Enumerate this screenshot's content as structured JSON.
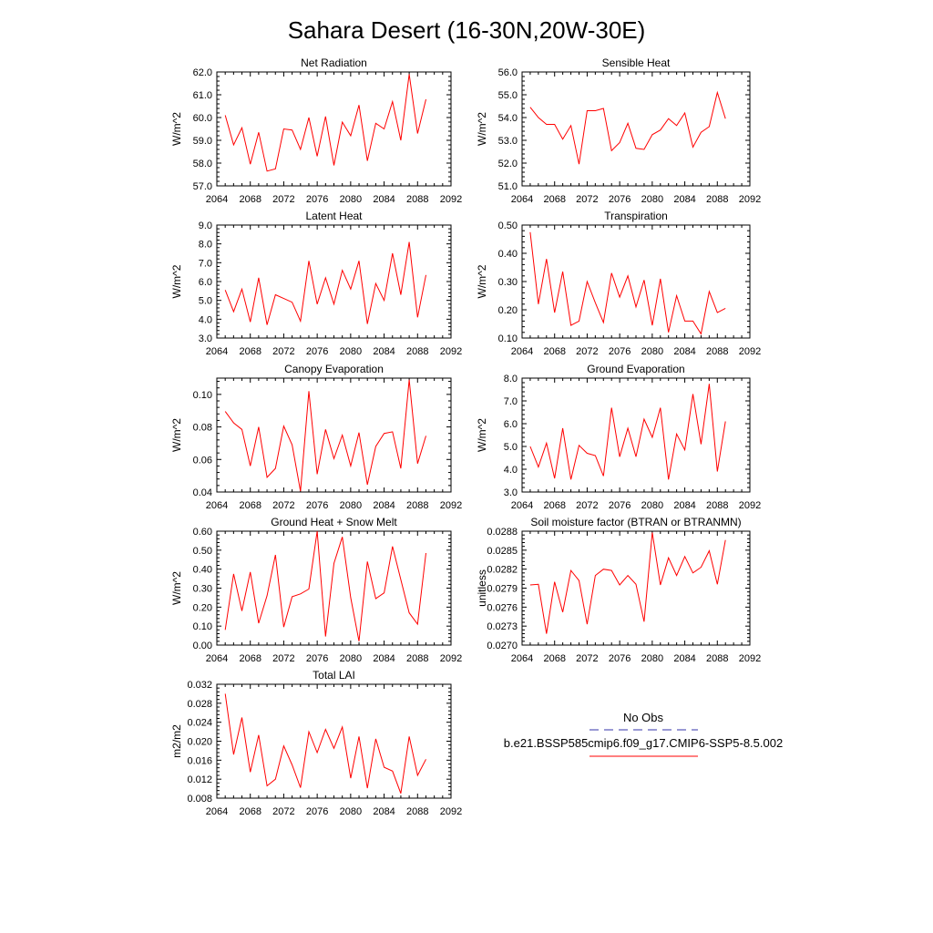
{
  "title": "Sahara Desert (16-30N,20W-30E)",
  "legend": {
    "obs_label": "No Obs",
    "obs_color": "#3333aa",
    "model_label": "b.e21.BSSP585cmip6.f09_g17.CMIP6-SSP5-8.5.002",
    "model_color": "#ff0000"
  },
  "chart_data": [
    {
      "type": "line",
      "title": "Net Radiation",
      "ylabel": "W/m^2",
      "xlabel": "",
      "xlim": [
        2064,
        2092
      ],
      "xticks": [
        "2064",
        "2068",
        "2072",
        "2076",
        "2080",
        "2084",
        "2088",
        "2092"
      ],
      "ylim": [
        57.0,
        62.0
      ],
      "yticks": [
        "57.0",
        "58.0",
        "59.0",
        "60.0",
        "61.0",
        "62.0"
      ],
      "series": [
        {
          "color": "#ff0000",
          "x": [
            2065,
            2066,
            2067,
            2068,
            2069,
            2070,
            2071,
            2072,
            2073,
            2074,
            2075,
            2076,
            2077,
            2078,
            2079,
            2080,
            2081,
            2082,
            2083,
            2084,
            2085,
            2086,
            2087,
            2088,
            2089
          ],
          "y": [
            60.1,
            58.8,
            59.55,
            57.95,
            59.35,
            57.65,
            57.75,
            59.5,
            59.45,
            58.6,
            60.0,
            58.3,
            60.05,
            57.9,
            59.8,
            59.2,
            60.55,
            58.1,
            59.75,
            59.5,
            60.7,
            59.0,
            61.9,
            59.3,
            60.8
          ]
        }
      ]
    },
    {
      "type": "line",
      "title": "Sensible Heat",
      "ylabel": "W/m^2",
      "xlabel": "",
      "xlim": [
        2064,
        2092
      ],
      "xticks": [
        "2064",
        "2068",
        "2072",
        "2076",
        "2080",
        "2084",
        "2088",
        "2092"
      ],
      "ylim": [
        51.0,
        56.0
      ],
      "yticks": [
        "51.0",
        "52.0",
        "53.0",
        "54.0",
        "55.0",
        "56.0"
      ],
      "series": [
        {
          "color": "#ff0000",
          "x": [
            2065,
            2066,
            2067,
            2068,
            2069,
            2070,
            2071,
            2072,
            2073,
            2074,
            2075,
            2076,
            2077,
            2078,
            2079,
            2080,
            2081,
            2082,
            2083,
            2084,
            2085,
            2086,
            2087,
            2088,
            2089
          ],
          "y": [
            54.45,
            54.0,
            53.7,
            53.7,
            53.05,
            53.65,
            51.95,
            54.3,
            54.3,
            54.4,
            52.55,
            52.9,
            53.75,
            52.65,
            52.6,
            53.25,
            53.45,
            53.95,
            53.65,
            54.2,
            52.7,
            53.35,
            53.6,
            55.1,
            53.95
          ]
        }
      ]
    },
    {
      "type": "line",
      "title": "Latent Heat",
      "ylabel": "W/m^2",
      "xlabel": "",
      "xlim": [
        2064,
        2092
      ],
      "xticks": [
        "2064",
        "2068",
        "2072",
        "2076",
        "2080",
        "2084",
        "2088",
        "2092"
      ],
      "ylim": [
        3.0,
        9.0
      ],
      "yticks": [
        "3.0",
        "4.0",
        "5.0",
        "6.0",
        "7.0",
        "8.0",
        "9.0"
      ],
      "series": [
        {
          "color": "#ff0000",
          "x": [
            2065,
            2066,
            2067,
            2068,
            2069,
            2070,
            2071,
            2072,
            2073,
            2074,
            2075,
            2076,
            2077,
            2078,
            2079,
            2080,
            2081,
            2082,
            2083,
            2084,
            2085,
            2086,
            2087,
            2088,
            2089
          ],
          "y": [
            5.55,
            4.4,
            5.6,
            3.85,
            6.2,
            3.7,
            5.3,
            5.1,
            4.9,
            3.9,
            7.1,
            4.8,
            6.2,
            4.8,
            6.6,
            5.6,
            7.1,
            3.75,
            5.9,
            5.0,
            7.5,
            5.3,
            8.1,
            4.1,
            6.35
          ]
        }
      ]
    },
    {
      "type": "line",
      "title": "Transpiration",
      "ylabel": "W/m^2",
      "xlabel": "",
      "xlim": [
        2064,
        2092
      ],
      "xticks": [
        "2064",
        "2068",
        "2072",
        "2076",
        "2080",
        "2084",
        "2088",
        "2092"
      ],
      "ylim": [
        0.1,
        0.5
      ],
      "yticks": [
        "0.10",
        "0.20",
        "0.30",
        "0.40",
        "0.50"
      ],
      "series": [
        {
          "color": "#ff0000",
          "x": [
            2065,
            2066,
            2067,
            2068,
            2069,
            2070,
            2071,
            2072,
            2073,
            2074,
            2075,
            2076,
            2077,
            2078,
            2079,
            2080,
            2081,
            2082,
            2083,
            2084,
            2085,
            2086,
            2087,
            2088,
            2089
          ],
          "y": [
            0.475,
            0.22,
            0.38,
            0.19,
            0.335,
            0.145,
            0.16,
            0.3,
            0.225,
            0.155,
            0.33,
            0.245,
            0.32,
            0.21,
            0.305,
            0.145,
            0.31,
            0.12,
            0.25,
            0.16,
            0.16,
            0.115,
            0.265,
            0.19,
            0.205
          ]
        }
      ]
    },
    {
      "type": "line",
      "title": "Canopy Evaporation",
      "ylabel": "W/m^2",
      "xlabel": "",
      "xlim": [
        2064,
        2092
      ],
      "xticks": [
        "2064",
        "2068",
        "2072",
        "2076",
        "2080",
        "2084",
        "2088",
        "2092"
      ],
      "ylim": [
        0.04,
        0.11
      ],
      "yticks": [
        "0.04",
        "0.06",
        "0.08",
        "0.10"
      ],
      "series": [
        {
          "color": "#ff0000",
          "x": [
            2065,
            2066,
            2067,
            2068,
            2069,
            2070,
            2071,
            2072,
            2073,
            2074,
            2075,
            2076,
            2077,
            2078,
            2079,
            2080,
            2081,
            2082,
            2083,
            2084,
            2085,
            2086,
            2087,
            2088,
            2089
          ],
          "y": [
            0.0895,
            0.0825,
            0.0785,
            0.056,
            0.08,
            0.049,
            0.0545,
            0.0805,
            0.069,
            0.0405,
            0.102,
            0.051,
            0.0785,
            0.0605,
            0.075,
            0.056,
            0.0765,
            0.0445,
            0.068,
            0.076,
            0.077,
            0.0545,
            0.109,
            0.0575,
            0.0745
          ]
        }
      ]
    },
    {
      "type": "line",
      "title": "Ground Evaporation",
      "ylabel": "W/m^2",
      "xlabel": "",
      "xlim": [
        2064,
        2092
      ],
      "xticks": [
        "2064",
        "2068",
        "2072",
        "2076",
        "2080",
        "2084",
        "2088",
        "2092"
      ],
      "ylim": [
        3.0,
        8.0
      ],
      "yticks": [
        "3.0",
        "4.0",
        "5.0",
        "6.0",
        "7.0",
        "8.0"
      ],
      "series": [
        {
          "color": "#ff0000",
          "x": [
            2065,
            2066,
            2067,
            2068,
            2069,
            2070,
            2071,
            2072,
            2073,
            2074,
            2075,
            2076,
            2077,
            2078,
            2079,
            2080,
            2081,
            2082,
            2083,
            2084,
            2085,
            2086,
            2087,
            2088,
            2089
          ],
          "y": [
            5.0,
            4.1,
            5.15,
            3.6,
            5.8,
            3.55,
            5.05,
            4.7,
            4.6,
            3.7,
            6.7,
            4.55,
            5.8,
            4.55,
            6.2,
            5.4,
            6.7,
            3.55,
            5.55,
            4.85,
            7.3,
            5.1,
            7.75,
            3.9,
            6.1
          ]
        }
      ]
    },
    {
      "type": "line",
      "title": "Ground Heat + Snow Melt",
      "ylabel": "W/m^2",
      "xlabel": "",
      "xlim": [
        2064,
        2092
      ],
      "xticks": [
        "2064",
        "2068",
        "2072",
        "2076",
        "2080",
        "2084",
        "2088",
        "2092"
      ],
      "ylim": [
        0.0,
        0.6
      ],
      "yticks": [
        "0.00",
        "0.10",
        "0.20",
        "0.30",
        "0.40",
        "0.50",
        "0.60"
      ],
      "series": [
        {
          "color": "#ff0000",
          "x": [
            2065,
            2066,
            2067,
            2068,
            2069,
            2070,
            2071,
            2072,
            2073,
            2074,
            2075,
            2076,
            2077,
            2078,
            2079,
            2080,
            2081,
            2082,
            2083,
            2084,
            2085,
            2086,
            2087,
            2088,
            2089
          ],
          "y": [
            0.08,
            0.375,
            0.18,
            0.385,
            0.115,
            0.26,
            0.475,
            0.095,
            0.255,
            0.27,
            0.295,
            0.6,
            0.045,
            0.43,
            0.57,
            0.25,
            0.02,
            0.44,
            0.245,
            0.275,
            0.52,
            0.345,
            0.17,
            0.11,
            0.485
          ]
        }
      ]
    },
    {
      "type": "line",
      "title": "Soil moisture factor (BTRAN or BTRANMN)",
      "ylabel": "unitless",
      "xlabel": "",
      "xlim": [
        2064,
        2092
      ],
      "xticks": [
        "2064",
        "2068",
        "2072",
        "2076",
        "2080",
        "2084",
        "2088",
        "2092"
      ],
      "ylim": [
        0.027,
        0.0288
      ],
      "yticks": [
        "0.0270",
        "0.0273",
        "0.0276",
        "0.0279",
        "0.0282",
        "0.0285",
        "0.0288"
      ],
      "series": [
        {
          "color": "#ff0000",
          "x": [
            2065,
            2066,
            2067,
            2068,
            2069,
            2070,
            2071,
            2072,
            2073,
            2074,
            2075,
            2076,
            2077,
            2078,
            2079,
            2080,
            2081,
            2082,
            2083,
            2084,
            2085,
            2086,
            2087,
            2088,
            2089
          ],
          "y": [
            0.02795,
            0.02796,
            0.02718,
            0.028,
            0.02752,
            0.02818,
            0.02802,
            0.02733,
            0.0281,
            0.0282,
            0.02818,
            0.02795,
            0.0281,
            0.02796,
            0.02737,
            0.02878,
            0.02795,
            0.02838,
            0.0281,
            0.0284,
            0.02814,
            0.02823,
            0.02849,
            0.02796,
            0.02866
          ]
        }
      ]
    },
    {
      "type": "line",
      "title": "Total LAI",
      "ylabel": "m2/m2",
      "xlabel": "",
      "xlim": [
        2064,
        2092
      ],
      "xticks": [
        "2064",
        "2068",
        "2072",
        "2076",
        "2080",
        "2084",
        "2088",
        "2092"
      ],
      "ylim": [
        0.008,
        0.032
      ],
      "yticks": [
        "0.008",
        "0.012",
        "0.016",
        "0.020",
        "0.024",
        "0.028",
        "0.032"
      ],
      "series": [
        {
          "color": "#ff0000",
          "x": [
            2065,
            2066,
            2067,
            2068,
            2069,
            2070,
            2071,
            2072,
            2073,
            2074,
            2075,
            2076,
            2077,
            2078,
            2079,
            2080,
            2081,
            2082,
            2083,
            2084,
            2085,
            2086,
            2087,
            2088,
            2089
          ],
          "y": [
            0.03,
            0.0172,
            0.025,
            0.0135,
            0.0213,
            0.0106,
            0.012,
            0.019,
            0.015,
            0.0102,
            0.022,
            0.0176,
            0.0225,
            0.0185,
            0.023,
            0.0122,
            0.021,
            0.0101,
            0.0205,
            0.0145,
            0.0137,
            0.009,
            0.021,
            0.0128,
            0.0162
          ]
        }
      ]
    }
  ]
}
